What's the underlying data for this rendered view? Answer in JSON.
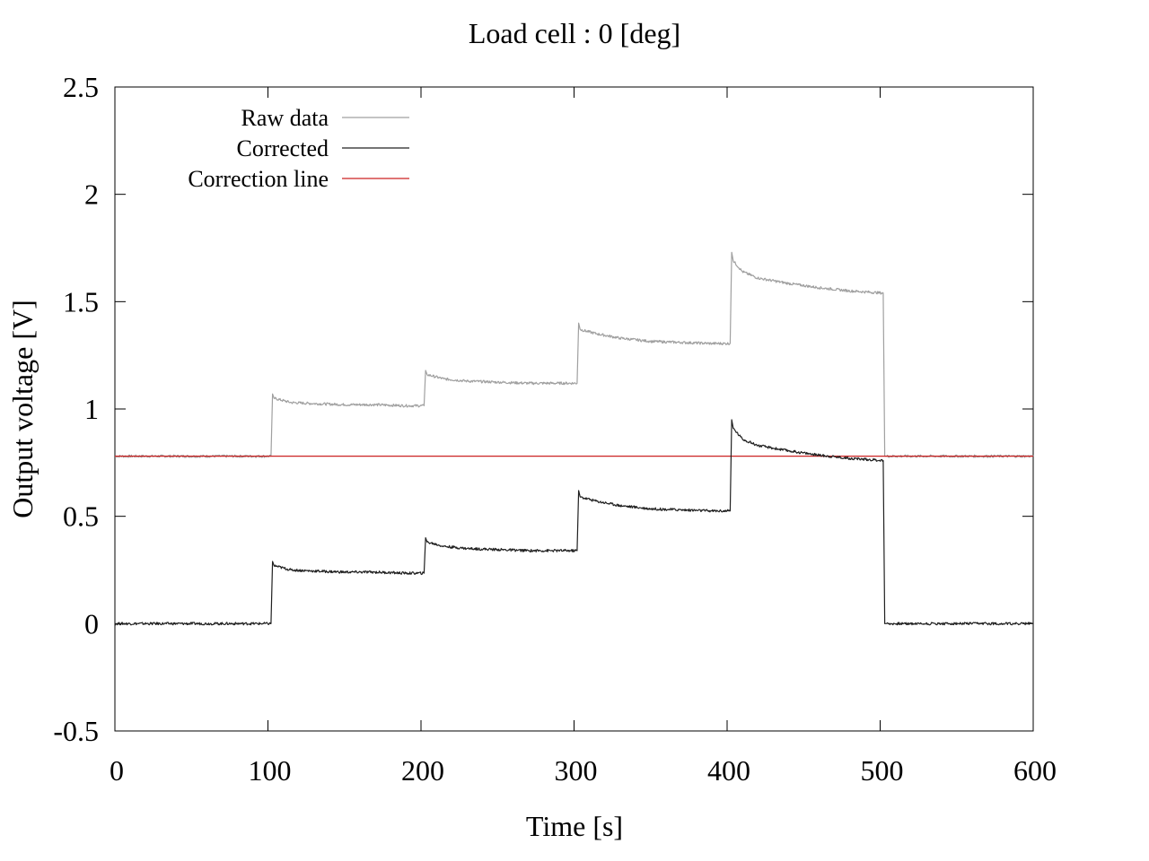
{
  "chart_data": {
    "type": "line",
    "title": "Load cell : 0 [deg]",
    "xlabel": "Time [s]",
    "ylabel": "Output voltage [V]",
    "xlim": [
      0,
      600
    ],
    "ylim": [
      -0.5,
      2.5
    ],
    "xticks": [
      "0",
      "100",
      "200",
      "300",
      "400",
      "500",
      "600"
    ],
    "yticks": [
      "-0.5",
      "0",
      "0.5",
      "1",
      "1.5",
      "2",
      "2.5"
    ],
    "grid": false,
    "legend_position": "top-left",
    "series": [
      {
        "name": "Raw data",
        "color": "#a0a0a0",
        "x": [
          0,
          102,
          103,
          104,
          115,
          130,
          150,
          170,
          190,
          202,
          203,
          204,
          215,
          230,
          250,
          270,
          290,
          302,
          303,
          304,
          315,
          330,
          350,
          370,
          390,
          402,
          403,
          404,
          410,
          420,
          440,
          460,
          480,
          502,
          503,
          504,
          600
        ],
        "y": [
          0.78,
          0.78,
          1.07,
          1.05,
          1.03,
          1.025,
          1.02,
          1.02,
          1.015,
          1.015,
          1.18,
          1.16,
          1.14,
          1.13,
          1.125,
          1.12,
          1.12,
          1.12,
          1.4,
          1.37,
          1.35,
          1.33,
          1.315,
          1.31,
          1.305,
          1.305,
          1.73,
          1.69,
          1.64,
          1.61,
          1.585,
          1.565,
          1.55,
          1.54,
          0.78,
          0.78,
          0.78
        ]
      },
      {
        "name": "Corrected",
        "color": "#202020",
        "x": [
          0,
          102,
          103,
          104,
          115,
          130,
          150,
          170,
          190,
          202,
          203,
          204,
          215,
          230,
          250,
          270,
          290,
          302,
          303,
          304,
          315,
          330,
          350,
          370,
          390,
          402,
          403,
          404,
          410,
          420,
          440,
          460,
          480,
          502,
          503,
          504,
          600
        ],
        "y": [
          0.0,
          0.0,
          0.29,
          0.27,
          0.25,
          0.245,
          0.24,
          0.24,
          0.235,
          0.235,
          0.4,
          0.38,
          0.36,
          0.35,
          0.345,
          0.34,
          0.34,
          0.34,
          0.62,
          0.59,
          0.57,
          0.55,
          0.535,
          0.53,
          0.525,
          0.525,
          0.95,
          0.91,
          0.86,
          0.83,
          0.805,
          0.785,
          0.77,
          0.76,
          0.0,
          0.0,
          0.0
        ]
      },
      {
        "name": "Correction line",
        "color": "#cc2222",
        "x": [
          0,
          600
        ],
        "y": [
          0.78,
          0.78
        ]
      }
    ]
  }
}
